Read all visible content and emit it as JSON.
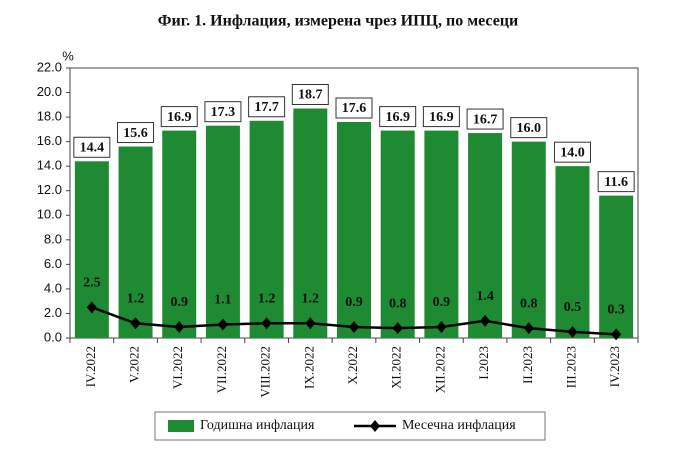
{
  "chart_data": {
    "type": "bar_line",
    "title": "Фиг. 1. Инфлация, измерена чрез ИПЦ, по месеци",
    "y_unit": "%",
    "categories": [
      "IV.2022",
      "V.2022",
      "VI.2022",
      "VII.2022",
      "VIII.2022",
      "IX.2022",
      "X.2022",
      "XI.2022",
      "XII.2022",
      "I.2023",
      "II.2023",
      "III.2023",
      "IV.2023"
    ],
    "series": [
      {
        "name": "Годишна инфлация",
        "type": "bar",
        "color": "#1e8a32",
        "values": [
          14.4,
          15.6,
          16.9,
          17.3,
          17.7,
          18.7,
          17.6,
          16.9,
          16.9,
          16.7,
          16.0,
          14.0,
          11.6
        ],
        "value_labels": [
          "14.4",
          "15.6",
          "16.9",
          "17.3",
          "17.7",
          "18.7",
          "17.6",
          "16.9",
          "16.9",
          "16.7",
          "16.0",
          "14.0",
          "11.6"
        ]
      },
      {
        "name": "Месечна инфлация",
        "type": "line",
        "color": "#000000",
        "values": [
          2.5,
          1.2,
          0.9,
          1.1,
          1.2,
          1.2,
          0.9,
          0.8,
          0.9,
          1.4,
          0.8,
          0.5,
          0.3
        ]
      }
    ],
    "ylim": [
      0,
      22
    ],
    "yticks": [
      {
        "value": 0,
        "label": "0.0"
      },
      {
        "value": 2,
        "label": "2.0"
      },
      {
        "value": 4,
        "label": "4.0"
      },
      {
        "value": 6,
        "label": "6.0"
      },
      {
        "value": 8,
        "label": "8.0"
      },
      {
        "value": 10,
        "label": "10.0"
      },
      {
        "value": 12,
        "label": "12.0"
      },
      {
        "value": 14,
        "label": "14.0"
      },
      {
        "value": 16,
        "label": "16.0"
      },
      {
        "value": 18,
        "label": "18.0"
      },
      {
        "value": 20,
        "label": "20.0"
      },
      {
        "value": 22,
        "label": "22.0"
      }
    ],
    "grid": false
  }
}
